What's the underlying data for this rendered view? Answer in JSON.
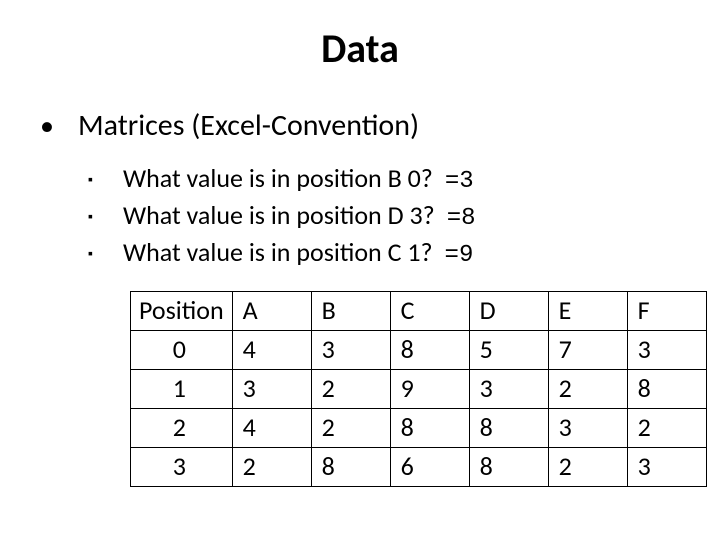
{
  "title": "Data",
  "main_bullet": {
    "symbol": "•",
    "text": "Matrices (Excel-Convention)"
  },
  "sub_bullets": {
    "symbol": "▪",
    "items": [
      {
        "question": "What value is in position B 0?",
        "answer": "=3"
      },
      {
        "question": "What value is in position D 3?",
        "answer": "=8"
      },
      {
        "question": "What value is in position C 1?",
        "answer": "=9"
      }
    ]
  },
  "table": {
    "header_label": "Position",
    "columns": [
      "A",
      "B",
      "C",
      "D",
      "E",
      "F"
    ],
    "row_labels": [
      "0",
      "1",
      "2",
      "3"
    ],
    "rows": [
      [
        "4",
        "3",
        "8",
        "5",
        "7",
        "3"
      ],
      [
        "3",
        "2",
        "9",
        "3",
        "2",
        "8"
      ],
      [
        "4",
        "2",
        "8",
        "8",
        "3",
        "2"
      ],
      [
        "2",
        "8",
        "6",
        "8",
        "2",
        "3"
      ]
    ],
    "border_color": "#000000",
    "cell_bg": "#ffffff",
    "font_size": 26
  }
}
